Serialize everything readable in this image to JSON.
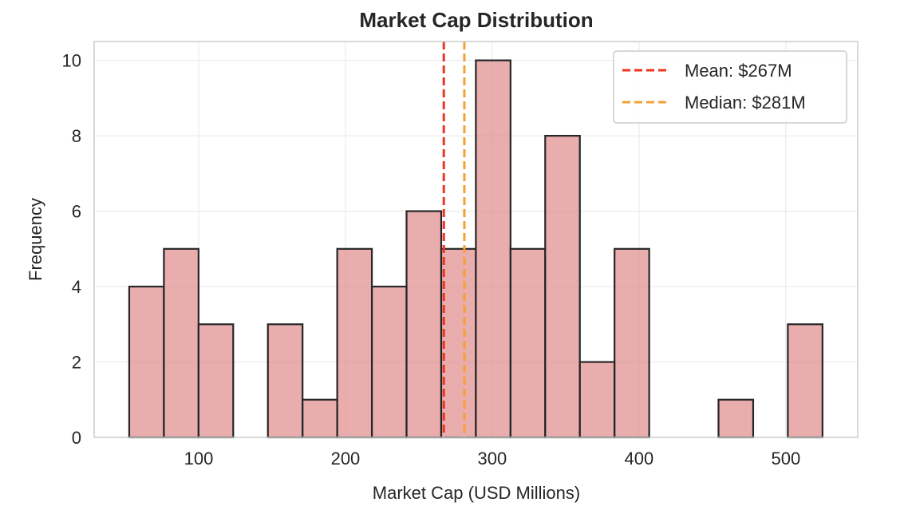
{
  "chart_data": {
    "type": "bar",
    "title": "Market Cap Distribution",
    "xlabel": "Market Cap (USD Millions)",
    "ylabel": "Frequency",
    "bin_start": 52.7,
    "bin_end": 525,
    "counts": [
      4,
      5,
      3,
      0,
      3,
      1,
      5,
      4,
      6,
      5,
      10,
      5,
      8,
      2,
      5,
      0,
      0,
      1,
      0,
      3
    ],
    "xlim": [
      28.8,
      549
    ],
    "ylim": [
      0,
      10.5
    ],
    "xticks": [
      100,
      200,
      300,
      400,
      500
    ],
    "yticks": [
      0,
      2,
      4,
      6,
      8,
      10
    ],
    "grid": true,
    "bar_color": "#e08a8a",
    "edge_color": "#262626",
    "legend_placement": "top-right",
    "lines": [
      {
        "label": "Mean: $267M",
        "value": 267,
        "color": "#ee3322"
      },
      {
        "label": "Median: $281M",
        "value": 281,
        "color": "#f5a033"
      }
    ]
  }
}
